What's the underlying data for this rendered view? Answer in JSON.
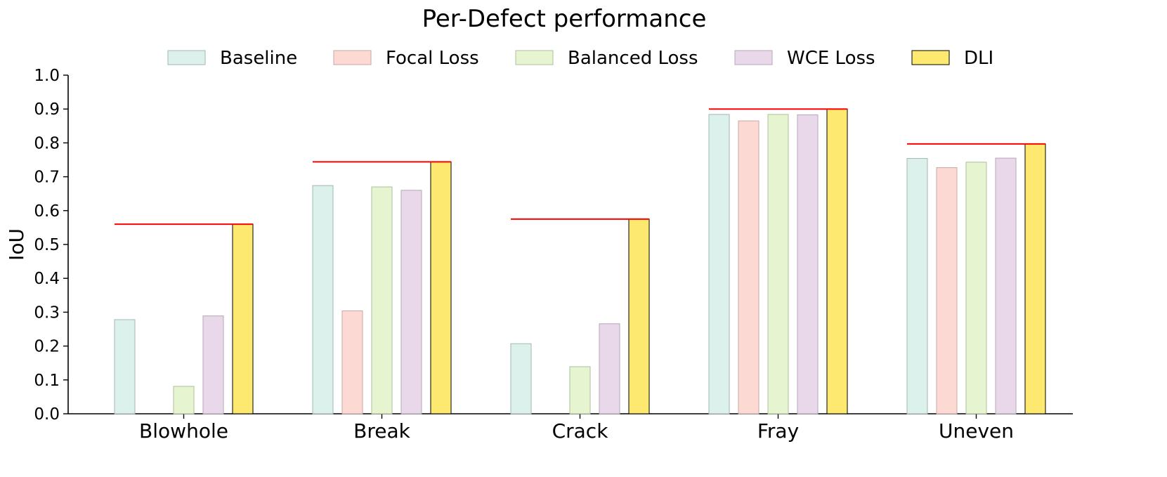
{
  "chart_data": {
    "type": "bar",
    "title": "Per-Defect performance",
    "xlabel": "",
    "ylabel": "IoU",
    "ylim": [
      0,
      1.0
    ],
    "yticks": [
      "0.0",
      "0.1",
      "0.2",
      "0.3",
      "0.4",
      "0.5",
      "0.6",
      "0.7",
      "0.8",
      "0.9",
      "1.0"
    ],
    "legend_position": "top-center",
    "grid": false,
    "categories": [
      "Blowhole",
      "Break",
      "Crack",
      "Fray",
      "Uneven"
    ],
    "series": [
      {
        "name": "Baseline",
        "color": "#dcf0ec",
        "edge": "#9fb8b2",
        "values": [
          0.278,
          0.674,
          0.207,
          0.884,
          0.754
        ]
      },
      {
        "name": "Focal Loss",
        "color": "#fcd9d3",
        "edge": "#c7a9a4",
        "values": [
          0.0,
          0.304,
          0.0,
          0.865,
          0.727
        ]
      },
      {
        "name": "Balanced Loss",
        "color": "#e6f4d0",
        "edge": "#aebf9c",
        "values": [
          0.081,
          0.67,
          0.139,
          0.884,
          0.743
        ]
      },
      {
        "name": "WCE Loss",
        "color": "#e8d8ea",
        "edge": "#b5a6b8",
        "values": [
          0.289,
          0.66,
          0.266,
          0.883,
          0.755
        ]
      },
      {
        "name": "DLI",
        "color": "#fde96f",
        "edge": "#000000",
        "values": [
          0.56,
          0.744,
          0.575,
          0.9,
          0.797
        ]
      }
    ],
    "reference_lines": {
      "description": "red horizontal line at DLI value per category",
      "color": "#ff0000"
    }
  }
}
